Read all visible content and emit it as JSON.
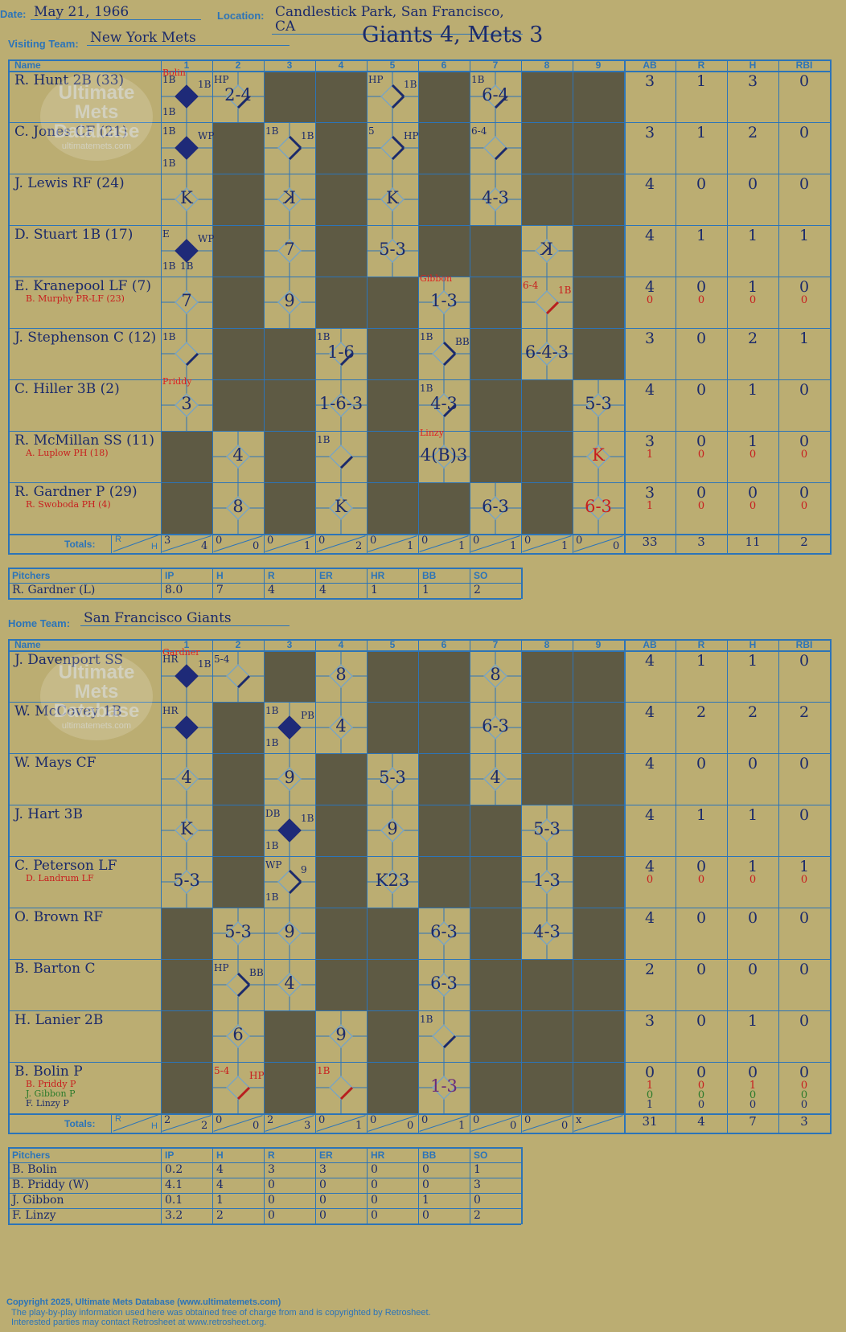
{
  "header": {
    "date_label": "Date:",
    "date": "May 21, 1966",
    "location_label": "Location:",
    "location": "Candlestick Park, San Francisco, CA",
    "visiting_label": "Visiting Team:",
    "visiting_team": "New York Mets",
    "home_label": "Home Team:",
    "home_team": "San Francisco Giants",
    "result": "Giants 4, Mets 3"
  },
  "watermark": {
    "line1": "Ultimate",
    "line2": "Mets",
    "line3": "Database",
    "url": "ultimatemets.com"
  },
  "columns": {
    "name": "Name",
    "innings": [
      "1",
      "2",
      "3",
      "4",
      "5",
      "6",
      "7",
      "8",
      "9"
    ],
    "stats": [
      "AB",
      "R",
      "H",
      "RBI"
    ],
    "totals": "Totals:",
    "r": "R",
    "h": "H"
  },
  "visitors": {
    "rows": [
      {
        "name": "R. Hunt 2B (33)",
        "subs": [],
        "ab": [
          "3"
        ],
        "r": [
          "1"
        ],
        "h": [
          "3"
        ],
        "rbi": [
          "0"
        ]
      },
      {
        "name": "C. Jones CF (21)",
        "subs": [],
        "ab": [
          "3"
        ],
        "r": [
          "1"
        ],
        "h": [
          "2"
        ],
        "rbi": [
          "0"
        ]
      },
      {
        "name": "J. Lewis RF (24)",
        "subs": [],
        "ab": [
          "4"
        ],
        "r": [
          "0"
        ],
        "h": [
          "0"
        ],
        "rbi": [
          "0"
        ]
      },
      {
        "name": "D. Stuart 1B (17)",
        "subs": [],
        "ab": [
          "4"
        ],
        "r": [
          "1"
        ],
        "h": [
          "1"
        ],
        "rbi": [
          "1"
        ]
      },
      {
        "name": "E. Kranepool LF (7)",
        "subs": [
          "B. Murphy PR-LF (23)"
        ],
        "ab": [
          "4",
          "0"
        ],
        "r": [
          "0",
          "0"
        ],
        "h": [
          "1",
          "0"
        ],
        "rbi": [
          "0",
          "0"
        ]
      },
      {
        "name": "J. Stephenson C (12)",
        "subs": [],
        "ab": [
          "3"
        ],
        "r": [
          "0"
        ],
        "h": [
          "2"
        ],
        "rbi": [
          "1"
        ]
      },
      {
        "name": "C. Hiller 3B (2)",
        "subs": [],
        "ab": [
          "4"
        ],
        "r": [
          "0"
        ],
        "h": [
          "1"
        ],
        "rbi": [
          "0"
        ]
      },
      {
        "name": "R. McMillan SS (11)",
        "subs": [
          "A. Luplow PH (18)"
        ],
        "ab": [
          "3",
          "1"
        ],
        "r": [
          "0",
          "0"
        ],
        "h": [
          "1",
          "0"
        ],
        "rbi": [
          "0",
          "0"
        ]
      },
      {
        "name": "R. Gardner P (29)",
        "subs": [
          "R. Swoboda PH (4)"
        ],
        "ab": [
          "3",
          "1"
        ],
        "r": [
          "0",
          "0"
        ],
        "h": [
          "0",
          "0"
        ],
        "rbi": [
          "0",
          "0"
        ]
      }
    ],
    "cells": [
      [
        {
          "t": "",
          "m": "1B",
          "s": "run",
          "p": "Bolin",
          "n": "1B,1B,1B"
        },
        {
          "t": "2-4",
          "s": "hp",
          "n": "HP"
        },
        null,
        null,
        {
          "t": "",
          "s": "hp2",
          "n": "HP,1B"
        },
        null,
        {
          "t": "6-4",
          "s": "1b",
          "n": "1B"
        },
        null,
        null
      ],
      [
        {
          "t": "",
          "s": "run",
          "n": "1B,WP,1B"
        },
        null,
        {
          "t": "",
          "s": "1b2",
          "n": "1B,1B"
        },
        null,
        {
          "t": "",
          "s": "hp3",
          "n": "5,HP"
        },
        null,
        {
          "t": "",
          "s": "64",
          "n": "6-4"
        },
        null,
        null
      ],
      [
        {
          "t": "K",
          "s": ""
        },
        null,
        {
          "t": "K",
          "s": "flip"
        },
        null,
        {
          "t": "K",
          "s": ""
        },
        null,
        {
          "t": "4-3",
          "s": ""
        },
        null,
        null
      ],
      [
        {
          "t": "",
          "s": "run",
          "n": "E,WP,1B,1B"
        },
        null,
        {
          "t": "7",
          "s": ""
        },
        null,
        {
          "t": "5-3",
          "s": ""
        },
        null,
        null,
        {
          "t": "K",
          "s": "flip"
        },
        null
      ],
      [
        {
          "t": "7",
          "s": ""
        },
        null,
        {
          "t": "9",
          "s": ""
        },
        null,
        null,
        {
          "t": "1-3",
          "s": "",
          "p": "Gibbon"
        },
        null,
        {
          "t": "",
          "s": "64r",
          "n": "6-4,1B"
        },
        null
      ],
      [
        {
          "t": "",
          "s": "1b",
          "n": "1B"
        },
        null,
        null,
        {
          "t": "1-6",
          "s": "1b",
          "n": "1B"
        },
        null,
        {
          "t": "",
          "s": "bb",
          "n": "1B,BB"
        },
        null,
        {
          "t": "6-4-3",
          "s": ""
        },
        null
      ],
      [
        {
          "t": "3",
          "s": "",
          "p": "Priddy"
        },
        null,
        null,
        {
          "t": "1-6-3",
          "s": ""
        },
        null,
        {
          "t": "4-3",
          "s": "1b",
          "n": "1B"
        },
        null,
        null,
        {
          "t": "5-3",
          "s": ""
        }
      ],
      [
        null,
        {
          "t": "4",
          "s": ""
        },
        null,
        {
          "t": "",
          "s": "1b",
          "n": "1B"
        },
        null,
        {
          "t": "4(B)3",
          "s": "",
          "p": "Linzy"
        },
        null,
        null,
        {
          "t": "K",
          "s": "red"
        }
      ],
      [
        null,
        {
          "t": "8",
          "s": ""
        },
        null,
        {
          "t": "K",
          "s": ""
        },
        null,
        null,
        {
          "t": "6-3",
          "s": ""
        },
        null,
        {
          "t": "6-3",
          "s": "red"
        }
      ]
    ],
    "totals_rh": [
      [
        "3",
        "4"
      ],
      [
        "0",
        "0"
      ],
      [
        "0",
        "1"
      ],
      [
        "0",
        "2"
      ],
      [
        "0",
        "1"
      ],
      [
        "0",
        "1"
      ],
      [
        "0",
        "1"
      ],
      [
        "0",
        "1"
      ],
      [
        "0",
        "0"
      ]
    ],
    "totals_stats": [
      "33",
      "3",
      "11",
      "2"
    ],
    "pitchers_head": [
      "Pitchers",
      "IP",
      "H",
      "R",
      "ER",
      "HR",
      "BB",
      "SO"
    ],
    "pitchers": [
      [
        "R. Gardner (L)",
        "8.0",
        "7",
        "4",
        "4",
        "1",
        "1",
        "2"
      ]
    ]
  },
  "home": {
    "rows": [
      {
        "name": "J. Davenport SS",
        "subs": [],
        "ab": [
          "4"
        ],
        "r": [
          "1"
        ],
        "h": [
          "1"
        ],
        "rbi": [
          "0"
        ]
      },
      {
        "name": "W. McCovey 1B",
        "subs": [],
        "ab": [
          "4"
        ],
        "r": [
          "2"
        ],
        "h": [
          "2"
        ],
        "rbi": [
          "2"
        ]
      },
      {
        "name": "W. Mays CF",
        "subs": [],
        "ab": [
          "4"
        ],
        "r": [
          "0"
        ],
        "h": [
          "0"
        ],
        "rbi": [
          "0"
        ]
      },
      {
        "name": "J. Hart 3B",
        "subs": [],
        "ab": [
          "4"
        ],
        "r": [
          "1"
        ],
        "h": [
          "1"
        ],
        "rbi": [
          "0"
        ]
      },
      {
        "name": "C. Peterson LF",
        "subs": [
          "D. Landrum LF"
        ],
        "ab": [
          "4",
          "0"
        ],
        "r": [
          "0",
          "0"
        ],
        "h": [
          "1",
          "0"
        ],
        "rbi": [
          "1",
          "0"
        ]
      },
      {
        "name": "O. Brown RF",
        "subs": [],
        "ab": [
          "4"
        ],
        "r": [
          "0"
        ],
        "h": [
          "0"
        ],
        "rbi": [
          "0"
        ]
      },
      {
        "name": "B. Barton C",
        "subs": [],
        "ab": [
          "2"
        ],
        "r": [
          "0"
        ],
        "h": [
          "0"
        ],
        "rbi": [
          "0"
        ]
      },
      {
        "name": "H. Lanier 2B",
        "subs": [],
        "ab": [
          "3"
        ],
        "r": [
          "0"
        ],
        "h": [
          "1"
        ],
        "rbi": [
          "0"
        ]
      },
      {
        "name": "B. Bolin P",
        "subs": [
          "B. Priddy P",
          "J. Gibbon P",
          "F. Linzy P"
        ],
        "ab": [
          "0",
          "1",
          "0",
          "1"
        ],
        "r": [
          "0",
          "0",
          "0",
          "0"
        ],
        "h": [
          "0",
          "1",
          "0",
          "0"
        ],
        "rbi": [
          "0",
          "0",
          "0",
          "0"
        ]
      }
    ],
    "cells": [
      [
        {
          "t": "",
          "s": "run",
          "p": "Gardner",
          "n": "HR,1B"
        },
        {
          "t": "",
          "s": "54",
          "n": "5-4"
        },
        null,
        {
          "t": "8",
          "s": ""
        },
        null,
        null,
        {
          "t": "8",
          "s": ""
        },
        null,
        null
      ],
      [
        {
          "t": "",
          "s": "run",
          "n": "HR"
        },
        null,
        {
          "t": "",
          "s": "run",
          "n": "1B,PB,1B"
        },
        {
          "t": "4",
          "s": ""
        },
        null,
        null,
        {
          "t": "6-3",
          "s": ""
        },
        null,
        null
      ],
      [
        {
          "t": "4",
          "s": ""
        },
        null,
        {
          "t": "9",
          "s": ""
        },
        null,
        {
          "t": "5-3",
          "s": ""
        },
        null,
        {
          "t": "4",
          "s": ""
        },
        null,
        null
      ],
      [
        {
          "t": "K",
          "s": ""
        },
        null,
        {
          "t": "",
          "s": "run",
          "n": "DB,1B,1B"
        },
        null,
        {
          "t": "9",
          "s": ""
        },
        null,
        null,
        {
          "t": "5-3",
          "s": ""
        },
        null
      ],
      [
        {
          "t": "5-3",
          "s": ""
        },
        null,
        {
          "t": "",
          "s": "wp",
          "n": "WP,9,1B"
        },
        null,
        {
          "t": "K23",
          "s": ""
        },
        null,
        null,
        {
          "t": "1-3",
          "s": ""
        },
        null
      ],
      [
        null,
        {
          "t": "5-3",
          "s": ""
        },
        {
          "t": "9",
          "s": ""
        },
        null,
        null,
        {
          "t": "6-3",
          "s": ""
        },
        null,
        {
          "t": "4-3",
          "s": ""
        },
        null
      ],
      [
        null,
        {
          "t": "",
          "s": "hpbb",
          "n": "HP,BB"
        },
        {
          "t": "4",
          "s": ""
        },
        null,
        null,
        {
          "t": "6-3",
          "s": ""
        },
        null,
        null,
        null
      ],
      [
        null,
        {
          "t": "6",
          "s": ""
        },
        null,
        {
          "t": "9",
          "s": ""
        },
        null,
        {
          "t": "",
          "s": "1b",
          "n": "1B"
        },
        null,
        null,
        null
      ],
      [
        null,
        {
          "t": "",
          "s": "54r",
          "n": "5-4,HP"
        },
        null,
        {
          "t": "",
          "s": "1br",
          "n": "1B"
        },
        null,
        {
          "t": "1-3",
          "s": "purple"
        },
        null,
        null,
        null
      ]
    ],
    "totals_rh": [
      [
        "2",
        "2"
      ],
      [
        "0",
        "0"
      ],
      [
        "2",
        "3"
      ],
      [
        "0",
        "1"
      ],
      [
        "0",
        "0"
      ],
      [
        "0",
        "1"
      ],
      [
        "0",
        "0"
      ],
      [
        "0",
        "0"
      ],
      [
        "x",
        ""
      ]
    ],
    "totals_stats": [
      "31",
      "4",
      "7",
      "3"
    ],
    "pitchers_head": [
      "Pitchers",
      "IP",
      "H",
      "R",
      "ER",
      "HR",
      "BB",
      "SO"
    ],
    "pitchers": [
      [
        "B. Bolin",
        "0.2",
        "4",
        "3",
        "3",
        "0",
        "0",
        "1"
      ],
      [
        "B. Priddy (W)",
        "4.1",
        "4",
        "0",
        "0",
        "0",
        "0",
        "3"
      ],
      [
        "J. Gibbon",
        "0.1",
        "1",
        "0",
        "0",
        "0",
        "1",
        "0"
      ],
      [
        "F. Linzy",
        "3.2",
        "2",
        "0",
        "0",
        "0",
        "0",
        "2"
      ]
    ]
  },
  "footer": {
    "line1": "Copyright 2025, Ultimate Mets Database (www.ultimatemets.com)",
    "line2": "The play-by-play information used here was obtained free of charge from and is copyrighted by Retrosheet.",
    "line3": "Interested parties may contact Retrosheet at www.retrosheet.org."
  },
  "colors": {
    "paper": "#bbad72",
    "grid": "#2c74b8",
    "dark": "#5e5a44",
    "ink": "#1b2a6b",
    "red": "#c81e1e"
  }
}
